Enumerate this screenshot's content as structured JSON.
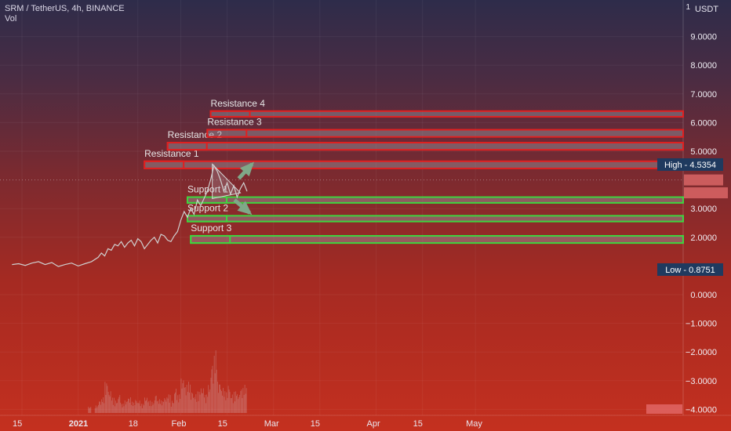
{
  "header": {
    "symbol": "SRM / TetherUS, 4h, BINANCE",
    "vol_label": "Vol"
  },
  "axis": {
    "unit": "USDT",
    "top_marker": "1"
  },
  "colors": {
    "resistance": "#e02020",
    "support": "#3fd43f",
    "price_line": "#cfcfcf",
    "arrow": "#7fa888"
  },
  "chart_data": {
    "type": "line",
    "ylim": [
      -4.2,
      10.8
    ],
    "yticks": [
      {
        "v": 9,
        "label": "9.0000"
      },
      {
        "v": 8,
        "label": "8.0000"
      },
      {
        "v": 7,
        "label": "7.0000"
      },
      {
        "v": 6,
        "label": "6.0000"
      },
      {
        "v": 5,
        "label": "5.0000"
      },
      {
        "v": 3,
        "label": "3.0000"
      },
      {
        "v": 2,
        "label": "2.0000"
      },
      {
        "v": 0,
        "label": "0.0000"
      },
      {
        "v": -1,
        "label": "−1.0000"
      },
      {
        "v": -2,
        "label": "−2.0000"
      },
      {
        "v": -3,
        "label": "−3.0000"
      },
      {
        "v": -4,
        "label": "−4.0000"
      }
    ],
    "xticks": [
      {
        "t": 0,
        "label": "15",
        "bold": false
      },
      {
        "t": 17,
        "label": "2021",
        "bold": true
      },
      {
        "t": 35,
        "label": "18",
        "bold": false
      },
      {
        "t": 48,
        "label": "Feb",
        "bold": false
      },
      {
        "t": 62,
        "label": "15",
        "bold": false
      },
      {
        "t": 76,
        "label": "Mar",
        "bold": false
      },
      {
        "t": 90,
        "label": "15",
        "bold": false
      },
      {
        "t": 107,
        "label": "Apr",
        "bold": false
      },
      {
        "t": 121,
        "label": "15",
        "bold": false
      },
      {
        "t": 137,
        "label": "May",
        "bold": false
      }
    ],
    "price_series": [
      [
        -3,
        1.05
      ],
      [
        -1,
        1.08
      ],
      [
        1,
        1.02
      ],
      [
        3,
        1.1
      ],
      [
        5,
        1.15
      ],
      [
        7,
        1.05
      ],
      [
        9,
        1.12
      ],
      [
        11,
        0.98
      ],
      [
        13,
        1.05
      ],
      [
        15,
        1.1
      ],
      [
        17,
        1.0
      ],
      [
        19,
        1.08
      ],
      [
        21,
        1.15
      ],
      [
        23,
        1.3
      ],
      [
        24,
        1.45
      ],
      [
        25,
        1.35
      ],
      [
        26,
        1.6
      ],
      [
        27,
        1.55
      ],
      [
        28,
        1.75
      ],
      [
        29,
        1.7
      ],
      [
        30,
        1.85
      ],
      [
        31,
        1.65
      ],
      [
        32,
        1.8
      ],
      [
        33,
        1.9
      ],
      [
        34,
        1.7
      ],
      [
        35,
        1.95
      ],
      [
        36,
        1.85
      ],
      [
        37,
        1.6
      ],
      [
        38,
        1.75
      ],
      [
        39,
        1.9
      ],
      [
        40,
        2.0
      ],
      [
        41,
        1.8
      ],
      [
        42,
        2.1
      ],
      [
        43,
        2.05
      ],
      [
        44,
        1.9
      ],
      [
        45,
        1.85
      ],
      [
        46,
        2.05
      ],
      [
        47,
        2.2
      ],
      [
        48,
        2.6
      ],
      [
        49,
        2.9
      ],
      [
        50,
        2.7
      ],
      [
        51,
        3.0
      ],
      [
        52,
        2.8
      ],
      [
        53,
        3.3
      ],
      [
        54,
        3.1
      ],
      [
        55,
        3.35
      ],
      [
        56,
        3.6
      ],
      [
        57,
        4.0
      ],
      [
        58,
        4.5
      ],
      [
        59,
        4.3
      ],
      [
        60,
        4.0
      ],
      [
        61,
        3.6
      ],
      [
        62,
        3.9
      ],
      [
        63,
        3.5
      ],
      [
        64,
        3.8
      ],
      [
        65,
        3.4
      ],
      [
        66,
        3.7
      ],
      [
        67,
        3.9
      ],
      [
        68,
        3.6
      ]
    ],
    "resistance_zones": [
      {
        "label": "Resistance  1",
        "t0": 37,
        "y_top": 4.65,
        "y_bot": 4.4
      },
      {
        "label": "Resistance  2",
        "t0": 44,
        "y_top": 5.3,
        "y_bot": 5.05
      },
      {
        "label": "Resistance  3",
        "t0": 56,
        "y_top": 5.75,
        "y_bot": 5.5
      },
      {
        "label": "Resistance  4",
        "t0": 57,
        "y_top": 6.4,
        "y_bot": 6.2
      }
    ],
    "support_zones": [
      {
        "label": "Support  1",
        "t0": 50,
        "y_top": 3.4,
        "y_bot": 3.2
      },
      {
        "label": "Support 2",
        "t0": 50,
        "y_top": 2.75,
        "y_bot": 2.55
      },
      {
        "label": "Support 3",
        "t0": 51,
        "y_top": 2.05,
        "y_bot": 1.8
      }
    ],
    "volume": [
      [
        20,
        0.1
      ],
      [
        22,
        0.12
      ],
      [
        23,
        0.2
      ],
      [
        24,
        0.25
      ],
      [
        25,
        0.5
      ],
      [
        26,
        0.35
      ],
      [
        27,
        0.25
      ],
      [
        28,
        0.2
      ],
      [
        29,
        0.3
      ],
      [
        30,
        0.15
      ],
      [
        31,
        0.2
      ],
      [
        32,
        0.25
      ],
      [
        33,
        0.18
      ],
      [
        34,
        0.22
      ],
      [
        35,
        0.2
      ],
      [
        36,
        0.15
      ],
      [
        37,
        0.25
      ],
      [
        38,
        0.2
      ],
      [
        39,
        0.18
      ],
      [
        40,
        0.3
      ],
      [
        41,
        0.22
      ],
      [
        42,
        0.2
      ],
      [
        43,
        0.25
      ],
      [
        44,
        0.3
      ],
      [
        45,
        0.2
      ],
      [
        46,
        0.4
      ],
      [
        47,
        0.3
      ],
      [
        48,
        0.55
      ],
      [
        49,
        0.45
      ],
      [
        50,
        0.5
      ],
      [
        51,
        0.35
      ],
      [
        52,
        0.3
      ],
      [
        53,
        0.35
      ],
      [
        54,
        0.4
      ],
      [
        55,
        0.3
      ],
      [
        56,
        0.45
      ],
      [
        57,
        0.8
      ],
      [
        58,
        1.0
      ],
      [
        59,
        0.5
      ],
      [
        60,
        0.4
      ],
      [
        61,
        0.35
      ],
      [
        62,
        0.45
      ],
      [
        63,
        0.3
      ],
      [
        64,
        0.35
      ],
      [
        65,
        0.3
      ],
      [
        66,
        0.4
      ],
      [
        67,
        0.45
      ]
    ],
    "high_label": "High - 4.5354",
    "high_value": 4.5354,
    "low_label": "Low - 0.8751",
    "low_value": 0.8751,
    "current_price": 4.0,
    "price_tags": [
      "",
      ""
    ],
    "volume_tag": ""
  }
}
